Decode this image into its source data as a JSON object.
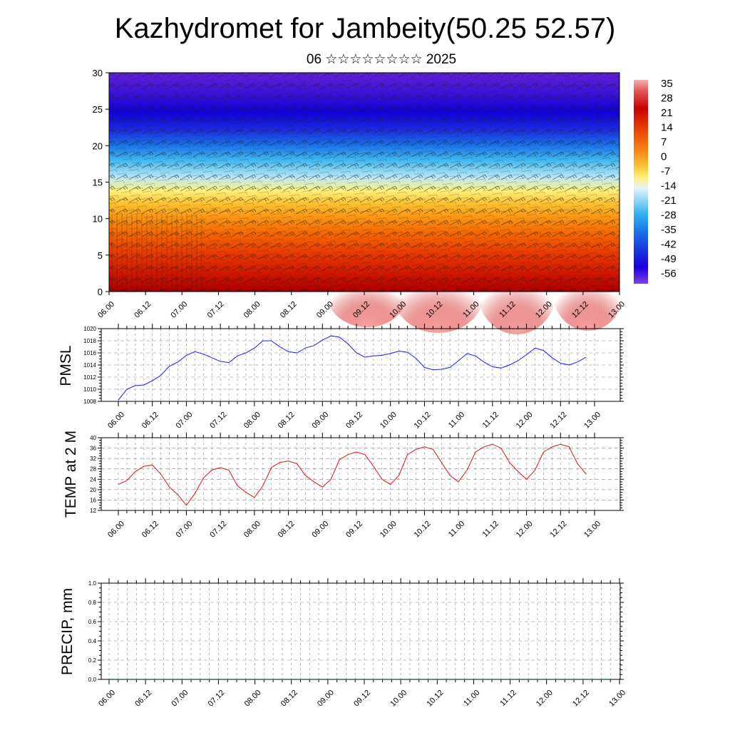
{
  "title": "Kazhydromet for Jambeity(50.25 52.57)",
  "subtitle": "06 ☆☆☆☆☆☆☆☆ 2025",
  "time_tick_labels": [
    "06.00",
    "06.12",
    "07.00",
    "07.12",
    "08.00",
    "08.12",
    "09.00",
    "09.12",
    "10.00",
    "10.12",
    "11.00",
    "11.12",
    "12.00",
    "12.12",
    "13.00"
  ],
  "colors": {
    "pmsl_line": "#1a1aff",
    "temp_line": "#e01010",
    "precip_line": "#2a6e55",
    "grid": "#888888"
  },
  "chart_data": [
    {
      "id": "cross-section",
      "type": "heatmap",
      "title": "",
      "ylabel": "",
      "ylim": [
        0,
        30
      ],
      "yticks": [
        0,
        5,
        10,
        15,
        20,
        25,
        30
      ],
      "overlay": "wind barbs",
      "colorbar": {
        "labels": [
          "35",
          "28",
          "21",
          "14",
          "7",
          "0",
          "-7",
          "-14",
          "-21",
          "-28",
          "-35",
          "-42",
          "-49",
          "-56"
        ],
        "range": [
          -56,
          35
        ]
      },
      "profile": {
        "heights": [
          0,
          2,
          5,
          8,
          10,
          12,
          14,
          16,
          18,
          20,
          22,
          24,
          26,
          28,
          30
        ],
        "values": [
          30,
          22,
          15,
          8,
          2,
          -2,
          -5,
          -10,
          -20,
          -32,
          -45,
          -55,
          -58,
          -55,
          -52
        ]
      }
    },
    {
      "id": "pmsl",
      "type": "line",
      "ylabel": "PMSL",
      "ylim": [
        1008,
        1020
      ],
      "yticks": [
        1008,
        1010,
        1012,
        1014,
        1016,
        1018,
        1020
      ],
      "x": [
        0,
        3,
        6,
        9,
        12,
        15,
        18,
        21,
        24,
        27,
        30,
        33,
        36,
        39,
        42,
        45,
        48,
        51,
        54,
        57,
        60,
        63,
        66,
        69,
        72,
        75,
        78,
        81,
        84,
        87,
        90,
        93,
        96,
        99,
        102,
        105,
        108,
        111,
        114,
        117,
        120,
        123,
        126,
        129,
        132,
        135,
        138,
        141,
        144,
        147,
        150,
        153,
        156,
        159,
        162,
        165
      ],
      "series": [
        {
          "values": [
            1008.2,
            1010.0,
            1010.6,
            1010.7,
            1011.4,
            1012.3,
            1013.8,
            1014.5,
            1015.6,
            1016.2,
            1015.8,
            1015.2,
            1014.6,
            1014.4,
            1015.5,
            1016.0,
            1016.8,
            1018.0,
            1018.0,
            1017.0,
            1016.2,
            1016.0,
            1016.8,
            1017.2,
            1018.1,
            1018.8,
            1018.6,
            1017.5,
            1016.0,
            1015.3,
            1015.5,
            1015.6,
            1015.9,
            1016.3,
            1016.1,
            1015.1,
            1013.6,
            1013.2,
            1013.3,
            1013.6,
            1014.7,
            1015.9,
            1015.5,
            1014.5,
            1013.7,
            1013.5,
            1014.0,
            1014.7,
            1015.7,
            1016.8,
            1016.4,
            1015.2,
            1014.3,
            1014.0,
            1014.5,
            1015.3
          ]
        }
      ]
    },
    {
      "id": "temp",
      "type": "line",
      "ylabel": "TEMP at 2 M",
      "ylim": [
        12,
        40
      ],
      "yticks": [
        12,
        16,
        20,
        24,
        28,
        32,
        36,
        40
      ],
      "x": [
        0,
        3,
        6,
        9,
        12,
        15,
        18,
        21,
        24,
        27,
        30,
        33,
        36,
        39,
        42,
        45,
        48,
        51,
        54,
        57,
        60,
        63,
        66,
        69,
        72,
        75,
        78,
        81,
        84,
        87,
        90,
        93,
        96,
        99,
        102,
        105,
        108,
        111,
        114,
        117,
        120,
        123,
        126,
        129,
        132,
        135,
        138,
        141,
        144,
        147,
        150,
        153,
        156,
        159,
        162,
        165
      ],
      "series": [
        {
          "values": [
            22,
            23.5,
            27,
            29,
            29.5,
            26,
            21,
            18,
            14,
            18.5,
            24.5,
            27.5,
            28.5,
            27.5,
            21.5,
            19,
            17,
            21.5,
            28.5,
            30.5,
            31,
            30,
            25.5,
            23,
            21,
            24,
            31.5,
            33.5,
            34.5,
            33.5,
            29,
            24,
            22,
            25.5,
            33.5,
            35.5,
            36.5,
            35.5,
            30.5,
            25.5,
            23,
            27.5,
            34.5,
            36.5,
            37.5,
            36,
            30.5,
            27,
            24,
            27.5,
            34.5,
            36.5,
            37.5,
            36.5,
            30,
            26
          ]
        }
      ]
    },
    {
      "id": "precip",
      "type": "line",
      "ylabel": "PRECIP, mm",
      "ylim": [
        0,
        1
      ],
      "yticks": [
        "0.0",
        "0.2",
        "0.4",
        "0.6",
        "0.8",
        "1.0"
      ],
      "series": [
        {
          "values": [
            0,
            0,
            0,
            0,
            0,
            0,
            0,
            0,
            0,
            0,
            0,
            0,
            0,
            0,
            0,
            0,
            0,
            0,
            0,
            0,
            0,
            0,
            0,
            0,
            0,
            0,
            0,
            0,
            0,
            0,
            0,
            0,
            0,
            0,
            0,
            0,
            0,
            0,
            0,
            0,
            0,
            0,
            0,
            0,
            0,
            0,
            0,
            0,
            0,
            0,
            0,
            0,
            0,
            0,
            0,
            0
          ]
        }
      ]
    }
  ]
}
